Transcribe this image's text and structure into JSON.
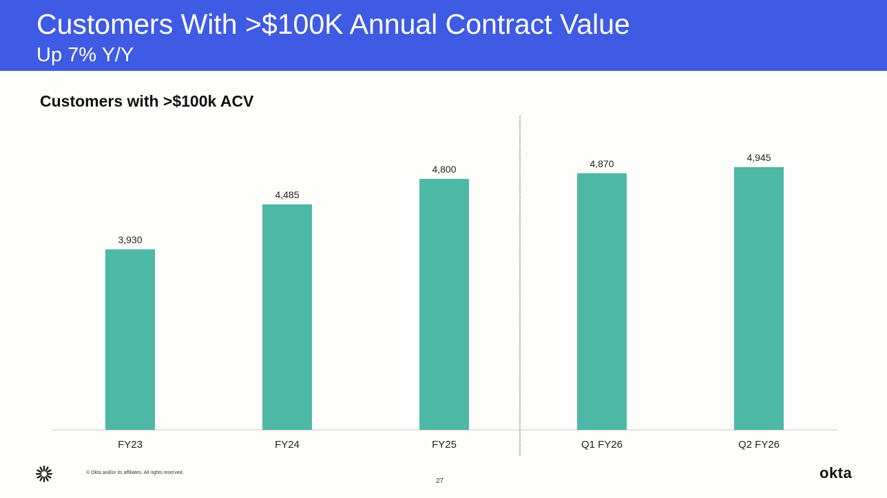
{
  "header": {
    "title": "Customers With >$100K Annual Contract Value",
    "subtitle": "Up 7% Y/Y",
    "background_color": "#3f5be3"
  },
  "chart_data": {
    "type": "bar",
    "title": "Customers with >$100k ACV",
    "categories": [
      "FY23",
      "FY24",
      "FY25",
      "Q1 FY26",
      "Q2 FY26"
    ],
    "values": [
      3930,
      4485,
      4800,
      4870,
      4945
    ],
    "value_labels": [
      "3,930",
      "4,485",
      "4,800",
      "4,870",
      "4,945"
    ],
    "bar_color": "#4db8a5",
    "xlabel": "",
    "ylabel": "",
    "ylim": [
      1700,
      4945
    ],
    "grid": false,
    "divider_between": [
      "FY25",
      "Q1 FY26"
    ]
  },
  "footer": {
    "copyright": "© Okta and/or its affiliates. All rights reserved.",
    "page_number": "27",
    "brand": "okta",
    "logo_icon": "okta-sunburst-icon"
  }
}
